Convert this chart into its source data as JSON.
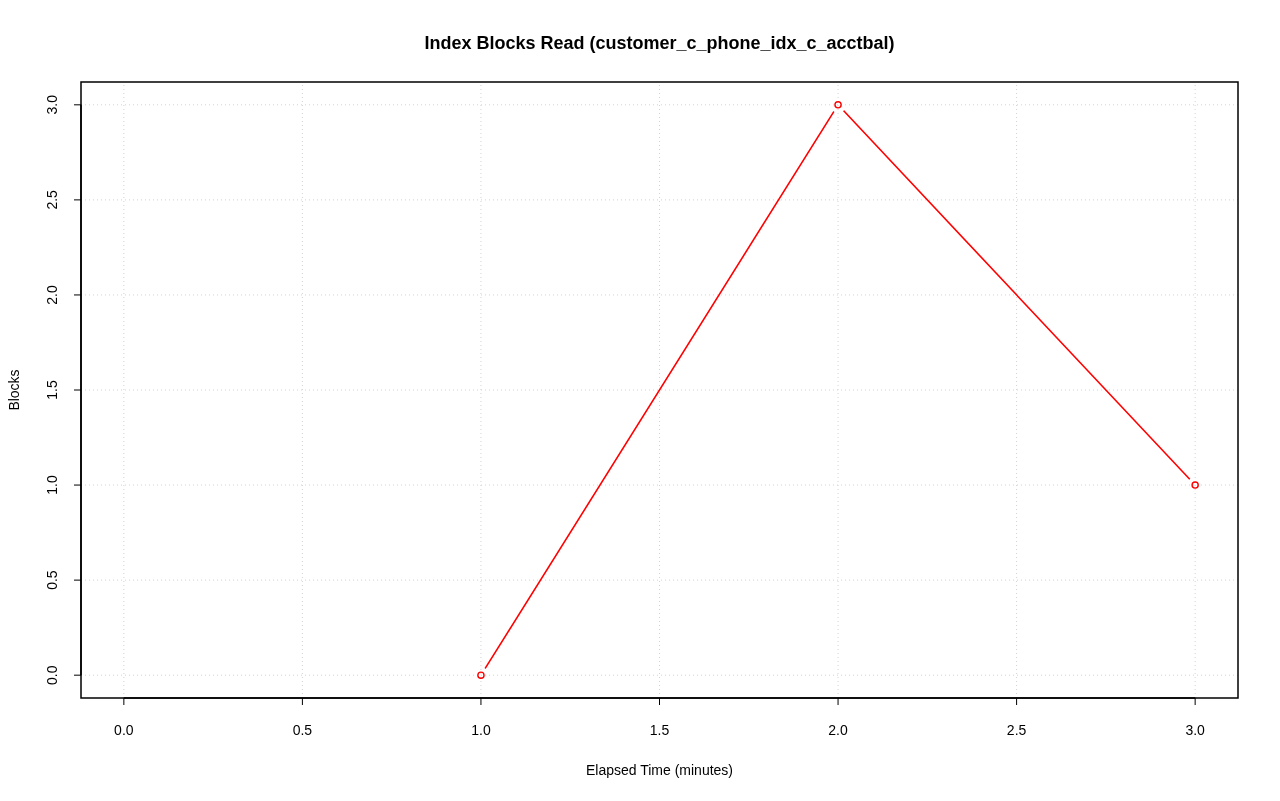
{
  "chart_data": {
    "type": "line",
    "title": "Index Blocks Read (customer_c_phone_idx_c_acctbal)",
    "xlabel": "Elapsed Time (minutes)",
    "ylabel": "Blocks",
    "x": [
      1,
      2,
      3
    ],
    "values": [
      0,
      3,
      1
    ],
    "color": "#ff0000",
    "marker": "circle",
    "line_style": "solid",
    "grid": true,
    "xlim": [
      -0.12,
      3.12
    ],
    "ylim": [
      -0.12,
      3.12
    ],
    "xticks": [
      {
        "value": 0,
        "label": "0.0"
      },
      {
        "value": 0.5,
        "label": "0.5"
      },
      {
        "value": 1,
        "label": "1.0"
      },
      {
        "value": 1.5,
        "label": "1.5"
      },
      {
        "value": 2,
        "label": "2.0"
      },
      {
        "value": 2.5,
        "label": "2.5"
      },
      {
        "value": 3,
        "label": "3.0"
      }
    ],
    "yticks": [
      {
        "value": 0,
        "label": "0.0"
      },
      {
        "value": 0.5,
        "label": "0.5"
      },
      {
        "value": 1,
        "label": "1.0"
      },
      {
        "value": 1.5,
        "label": "1.5"
      },
      {
        "value": 2,
        "label": "2.0"
      },
      {
        "value": 2.5,
        "label": "2.5"
      },
      {
        "value": 3,
        "label": "3.0"
      }
    ]
  }
}
